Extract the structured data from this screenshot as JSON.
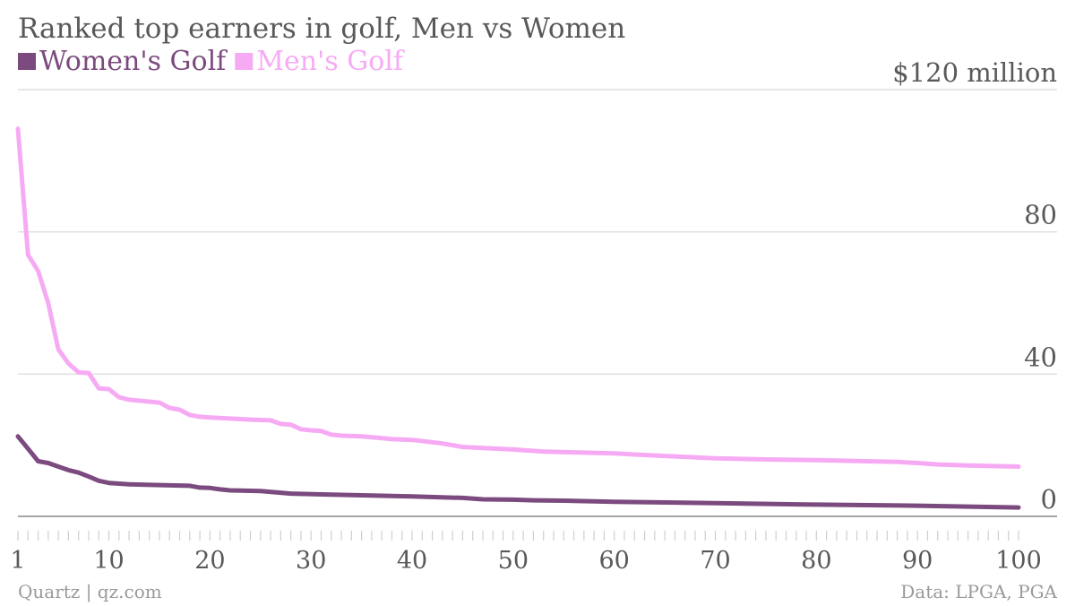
{
  "chart_data": {
    "type": "line",
    "title": "Ranked top earners in golf, Men vs Women",
    "y_unit_label": "$120 million",
    "y_ticks": [
      0,
      40,
      80,
      120
    ],
    "y_tick_labels": [
      "0",
      "40",
      "80",
      "$120 million"
    ],
    "ylim": [
      0,
      120
    ],
    "x_ticks": [
      1,
      10,
      20,
      30,
      40,
      50,
      60,
      70,
      80,
      90,
      100
    ],
    "x_tick_labels": [
      "1",
      "10",
      "20",
      "30",
      "40",
      "50",
      "60",
      "70",
      "80",
      "90",
      "100"
    ],
    "xlim": [
      1,
      100
    ],
    "grid": true,
    "legend_position": "top-left",
    "series": [
      {
        "name": "Women's Golf",
        "color": "#7b4a7e",
        "x": [
          1,
          2,
          3,
          4,
          5,
          6,
          7,
          8,
          9,
          10,
          12,
          15,
          18,
          19,
          20,
          21,
          22,
          25,
          28,
          32,
          37,
          40,
          45,
          47,
          50,
          52,
          55,
          60,
          70,
          80,
          90,
          100
        ],
        "y": [
          22.5,
          19,
          15.5,
          15,
          14,
          13,
          12.3,
          11.2,
          10,
          9.4,
          9,
          8.8,
          8.6,
          8.1,
          8,
          7.6,
          7.3,
          7.1,
          6.4,
          6.1,
          5.8,
          5.6,
          5.2,
          4.8,
          4.7,
          4.5,
          4.4,
          4.1,
          3.7,
          3.3,
          3,
          2.5
        ]
      },
      {
        "name": "Men's Golf",
        "color": "#f7aaf4",
        "x": [
          1,
          2,
          3,
          4,
          5,
          6,
          7,
          8,
          9,
          10,
          11,
          12,
          15,
          16,
          17,
          18,
          19,
          20,
          22,
          24,
          26,
          27,
          28,
          29,
          30,
          31,
          32,
          33,
          35,
          37,
          38,
          40,
          43,
          45,
          47,
          50,
          53,
          56,
          60,
          62,
          65,
          70,
          75,
          80,
          85,
          88,
          90,
          92,
          95,
          100
        ],
        "y": [
          109,
          73.5,
          69,
          60,
          47,
          43,
          40.5,
          40.3,
          36,
          35.8,
          33.5,
          32.8,
          32,
          30.5,
          30,
          28.5,
          28,
          27.8,
          27.5,
          27.2,
          27,
          26,
          25.8,
          24.5,
          24.2,
          24,
          23,
          22.7,
          22.5,
          22,
          21.7,
          21.5,
          20.5,
          19.5,
          19.2,
          18.8,
          18.2,
          18,
          17.7,
          17.4,
          17,
          16.3,
          16,
          15.8,
          15.5,
          15.3,
          15,
          14.6,
          14.3,
          14
        ]
      }
    ],
    "source_left": "Quartz | qz.com",
    "source_right": "Data: LPGA, PGA"
  }
}
